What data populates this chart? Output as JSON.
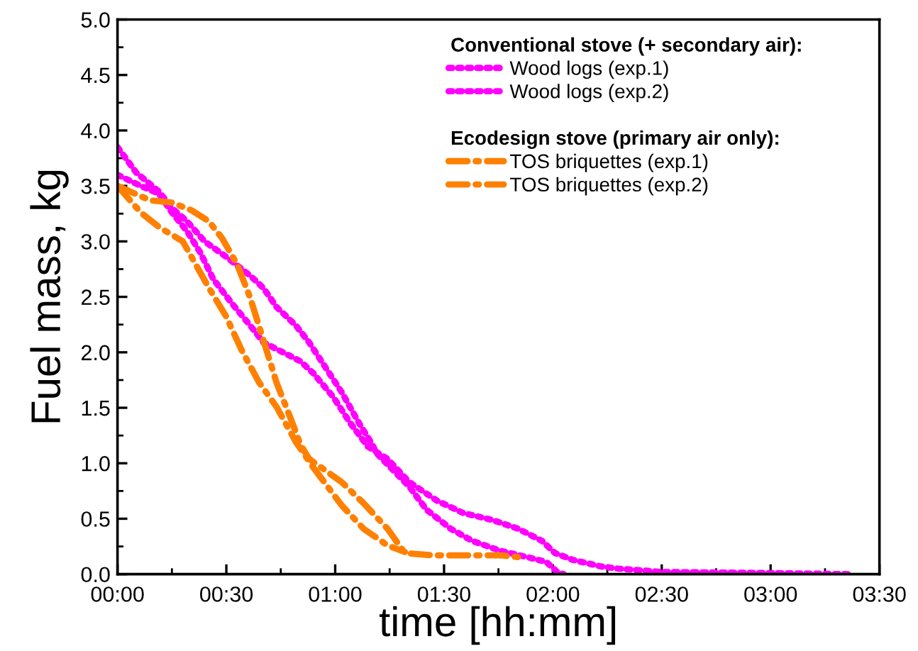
{
  "chart_data": {
    "type": "line",
    "xlabel": "time [hh:mm]",
    "ylabel": "Fuel mass, kg",
    "xlim": [
      0,
      3.5
    ],
    "xticks": [
      {
        "value": 0,
        "label": "00:00"
      },
      {
        "value": 0.5,
        "label": "00:30"
      },
      {
        "value": 1,
        "label": "01:00"
      },
      {
        "value": 1.5,
        "label": "01:30"
      },
      {
        "value": 2,
        "label": "02:00"
      },
      {
        "value": 2.5,
        "label": "02:30"
      },
      {
        "value": 3,
        "label": "03:00"
      },
      {
        "value": 3.5,
        "label": "03:30"
      }
    ],
    "ylim": [
      0,
      5
    ],
    "yticks": [
      {
        "value": 0,
        "label": "0.0"
      },
      {
        "value": 0.5,
        "label": "0.5"
      },
      {
        "value": 1,
        "label": "1.0"
      },
      {
        "value": 1.5,
        "label": "1.5"
      },
      {
        "value": 2,
        "label": "2.0"
      },
      {
        "value": 2.5,
        "label": "2.5"
      },
      {
        "value": 3,
        "label": "3.0"
      },
      {
        "value": 3.5,
        "label": "3.5"
      },
      {
        "value": 4,
        "label": "4.0"
      },
      {
        "value": 4.5,
        "label": "4.5"
      },
      {
        "value": 5,
        "label": "5.0"
      }
    ],
    "grid": false,
    "legend": "top right",
    "annotations": [
      "Conventional stove (+ secondary air):",
      "Ecodesign stove (primary air only):"
    ],
    "series": [
      {
        "name": "Wood logs (exp.1)",
        "color": "#ff00ff",
        "line_style": "dotted",
        "x": [
          0,
          0.086,
          0.19,
          0.25,
          0.32,
          0.4,
          0.5,
          0.61,
          0.67,
          0.73,
          0.82,
          0.88,
          0.96,
          1.03,
          1.11,
          1.17,
          1.19,
          1.34,
          1.42,
          1.53,
          1.63,
          1.76,
          1.89,
          1.97,
          2.02,
          2.05
        ],
        "values": [
          3.85,
          3.62,
          3.45,
          3.3,
          3.18,
          3.0,
          2.86,
          2.69,
          2.58,
          2.41,
          2.24,
          2.09,
          1.85,
          1.64,
          1.36,
          1.17,
          1.09,
          0.79,
          0.58,
          0.41,
          0.3,
          0.21,
          0.15,
          0.11,
          0.02,
          0.0
        ]
      },
      {
        "name": "Wood logs (exp.2)",
        "color": "#ff00ff",
        "line_style": "dotted",
        "x": [
          0,
          0.107,
          0.19,
          0.25,
          0.32,
          0.38,
          0.44,
          0.53,
          0.61,
          0.67,
          0.76,
          0.84,
          0.9,
          0.99,
          1.07,
          1.15,
          1.24,
          1.34,
          1.47,
          1.59,
          1.72,
          1.84,
          1.95,
          2.01,
          2.09,
          2.22,
          2.3,
          2.5,
          3.0,
          3.37
        ],
        "values": [
          3.6,
          3.5,
          3.43,
          3.26,
          3.09,
          2.9,
          2.66,
          2.43,
          2.24,
          2.09,
          2.0,
          1.92,
          1.81,
          1.6,
          1.36,
          1.15,
          1.04,
          0.83,
          0.66,
          0.55,
          0.49,
          0.41,
          0.3,
          0.19,
          0.13,
          0.07,
          0.05,
          0.02,
          0.01,
          0.0
        ]
      },
      {
        "name": "TOS briquettes (exp.1)",
        "color": "#ff8000",
        "line_style": "dashdot",
        "x": [
          0,
          0.15,
          0.25,
          0.34,
          0.42,
          0.48,
          0.55,
          0.61,
          0.67,
          0.73,
          0.8,
          0.84,
          0.88,
          1.03,
          1.13,
          1.24,
          1.32,
          1.45,
          1.76,
          1.86
        ],
        "values": [
          3.5,
          3.37,
          3.35,
          3.28,
          3.18,
          3.03,
          2.79,
          2.49,
          2.11,
          1.73,
          1.38,
          1.17,
          1.04,
          0.83,
          0.64,
          0.41,
          0.19,
          0.17,
          0.17,
          0.15
        ]
      },
      {
        "name": "TOS briquettes (exp.2)",
        "color": "#ff8000",
        "line_style": "dashdot",
        "x": [
          0,
          0.107,
          0.19,
          0.3,
          0.36,
          0.42,
          0.5,
          0.57,
          0.65,
          0.73,
          0.82,
          0.9,
          1.03,
          1.13,
          1.24,
          1.32
        ],
        "values": [
          3.5,
          3.26,
          3.13,
          3.0,
          2.79,
          2.58,
          2.32,
          2.02,
          1.73,
          1.51,
          1.19,
          0.96,
          0.62,
          0.41,
          0.26,
          0.2
        ]
      }
    ]
  }
}
